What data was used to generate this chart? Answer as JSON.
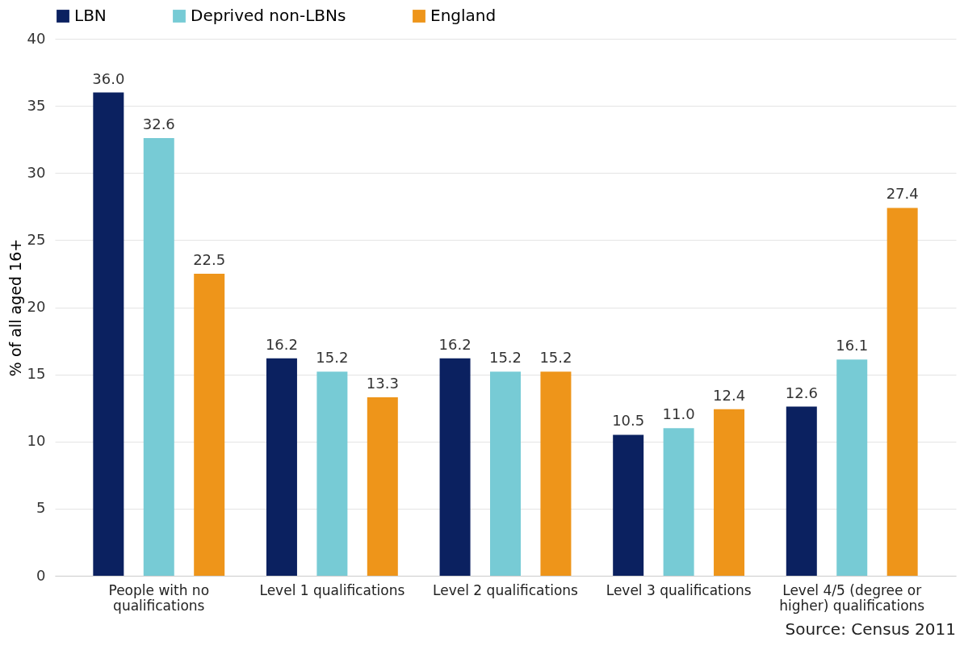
{
  "chart_data": {
    "type": "bar",
    "ylabel": "% of all aged 16+",
    "categories": [
      "People with no qualifications",
      "Level 1 qualifications",
      "Level 2 qualifications",
      "Level 3 qualifications",
      "Level 4/5 (degree or higher) qualifications"
    ],
    "series": [
      {
        "name": "LBN",
        "color": "#0b2160",
        "values": [
          36.0,
          16.2,
          16.2,
          10.5,
          12.6
        ],
        "value_labels": [
          "36.0",
          "16.2",
          "16.2",
          "10.5",
          "12.6"
        ]
      },
      {
        "name": "Deprived non-LBNs",
        "color": "#77cbd5",
        "values": [
          32.6,
          15.2,
          15.2,
          11.0,
          16.1
        ],
        "value_labels": [
          "32.6",
          "15.2",
          "15.2",
          "11.0",
          "16.1"
        ]
      },
      {
        "name": "England",
        "color": "#ee951a",
        "values": [
          22.5,
          13.3,
          15.2,
          12.4,
          27.4
        ],
        "value_labels": [
          "22.5",
          "13.3",
          "15.2",
          "12.4",
          "27.4"
        ]
      }
    ],
    "ylim": [
      0,
      40
    ],
    "yticks": [
      0,
      5,
      10,
      15,
      20,
      25,
      30,
      35,
      40
    ],
    "grid": "y",
    "legend": "top",
    "annotations": [
      "Source: Census 2011"
    ]
  }
}
